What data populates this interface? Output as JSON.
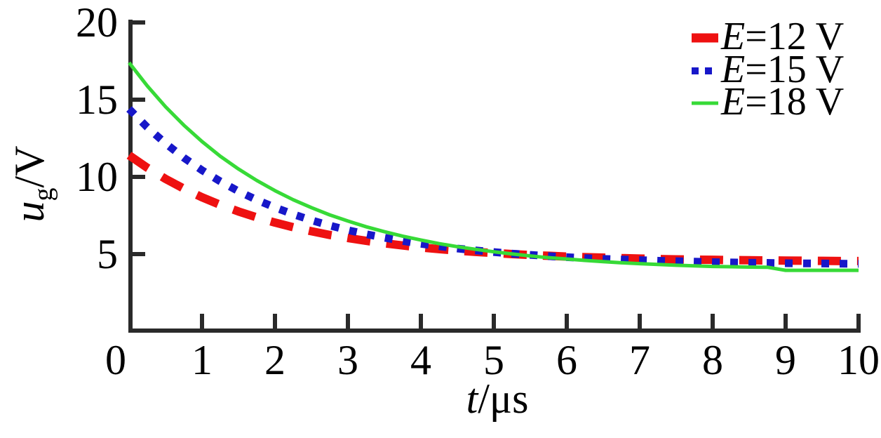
{
  "figure": {
    "background": "#ffffff",
    "axis_color": "#2a2a2a",
    "text_color": "#000000"
  },
  "chart_data": {
    "type": "line",
    "title": "",
    "xlabel": "t/μs",
    "xlabel_parts": {
      "variable": "t",
      "unit": "/μs"
    },
    "ylabel": "u_g/V",
    "ylabel_parts": {
      "variable": "u",
      "subscript": "g",
      "unit": "/V"
    },
    "xlim": [
      0,
      10
    ],
    "ylim": [
      0,
      20
    ],
    "x_ticks": [
      0,
      1,
      2,
      3,
      4,
      5,
      6,
      7,
      8,
      9,
      10
    ],
    "y_ticks": [
      5,
      10,
      15,
      20
    ],
    "grid": false,
    "legend_position": "top-right",
    "x": [
      0,
      0.25,
      0.5,
      0.75,
      1,
      1.25,
      1.5,
      1.75,
      2,
      2.25,
      2.5,
      2.75,
      3,
      3.25,
      3.5,
      3.75,
      4,
      4.25,
      4.5,
      4.75,
      5,
      5.25,
      5.5,
      5.75,
      6,
      6.25,
      6.5,
      6.75,
      7,
      7.25,
      7.5,
      7.75,
      8,
      8.25,
      8.5,
      8.75,
      9,
      9.25,
      9.5,
      9.75,
      10
    ],
    "series": [
      {
        "id": "e12",
        "name": "E=12 V",
        "label_variable": "E",
        "label_rest": "=12 V",
        "color": "#ee1111",
        "line_style": "dashed",
        "line_width": 12,
        "dash": [
          33,
          23
        ],
        "values": [
          11.4,
          10.59,
          9.87,
          9.24,
          8.68,
          8.19,
          7.76,
          7.38,
          7.04,
          6.74,
          6.48,
          6.24,
          6.04,
          5.86,
          5.7,
          5.56,
          5.43,
          5.32,
          5.23,
          5.14,
          5.07,
          5.0,
          4.94,
          4.89,
          4.84,
          4.8,
          4.77,
          4.74,
          4.71,
          4.68,
          4.66,
          4.64,
          4.63,
          4.61,
          4.6,
          4.59,
          4.58,
          4.57,
          4.56,
          4.55,
          4.55
        ]
      },
      {
        "id": "e15",
        "name": "E=15 V",
        "label_variable": "E",
        "label_rest": "=15 V",
        "color": "#1717c9",
        "line_style": "dotted",
        "line_width": 11,
        "dash": [
          11,
          15
        ],
        "values": [
          14.4,
          13.21,
          12.17,
          11.24,
          10.43,
          9.71,
          9.07,
          8.51,
          8.02,
          7.58,
          7.19,
          6.85,
          6.55,
          6.29,
          6.06,
          5.85,
          5.67,
          5.51,
          5.36,
          5.24,
          5.13,
          5.03,
          4.95,
          4.87,
          4.8,
          4.74,
          4.69,
          4.65,
          4.61,
          4.57,
          4.54,
          4.51,
          4.48,
          4.46,
          4.44,
          4.43,
          4.41,
          4.4,
          4.39,
          4.38,
          4.37
        ]
      },
      {
        "id": "e18",
        "name": "E=18 V",
        "label_variable": "E",
        "label_rest": "=18 V",
        "color": "#37da37",
        "line_style": "solid",
        "line_width": 5,
        "dash": null,
        "values": [
          17.4,
          15.89,
          14.54,
          13.35,
          12.29,
          11.34,
          10.51,
          9.77,
          9.11,
          8.52,
          8.01,
          7.54,
          7.14,
          6.77,
          6.45,
          6.16,
          5.91,
          5.68,
          5.48,
          5.31,
          5.15,
          5.01,
          4.88,
          4.77,
          4.68,
          4.59,
          4.51,
          4.44,
          4.38,
          4.33,
          4.28,
          4.24,
          4.2,
          4.18,
          4.16,
          4.15,
          3.95,
          3.95,
          3.95,
          3.95,
          3.95
        ]
      }
    ]
  }
}
